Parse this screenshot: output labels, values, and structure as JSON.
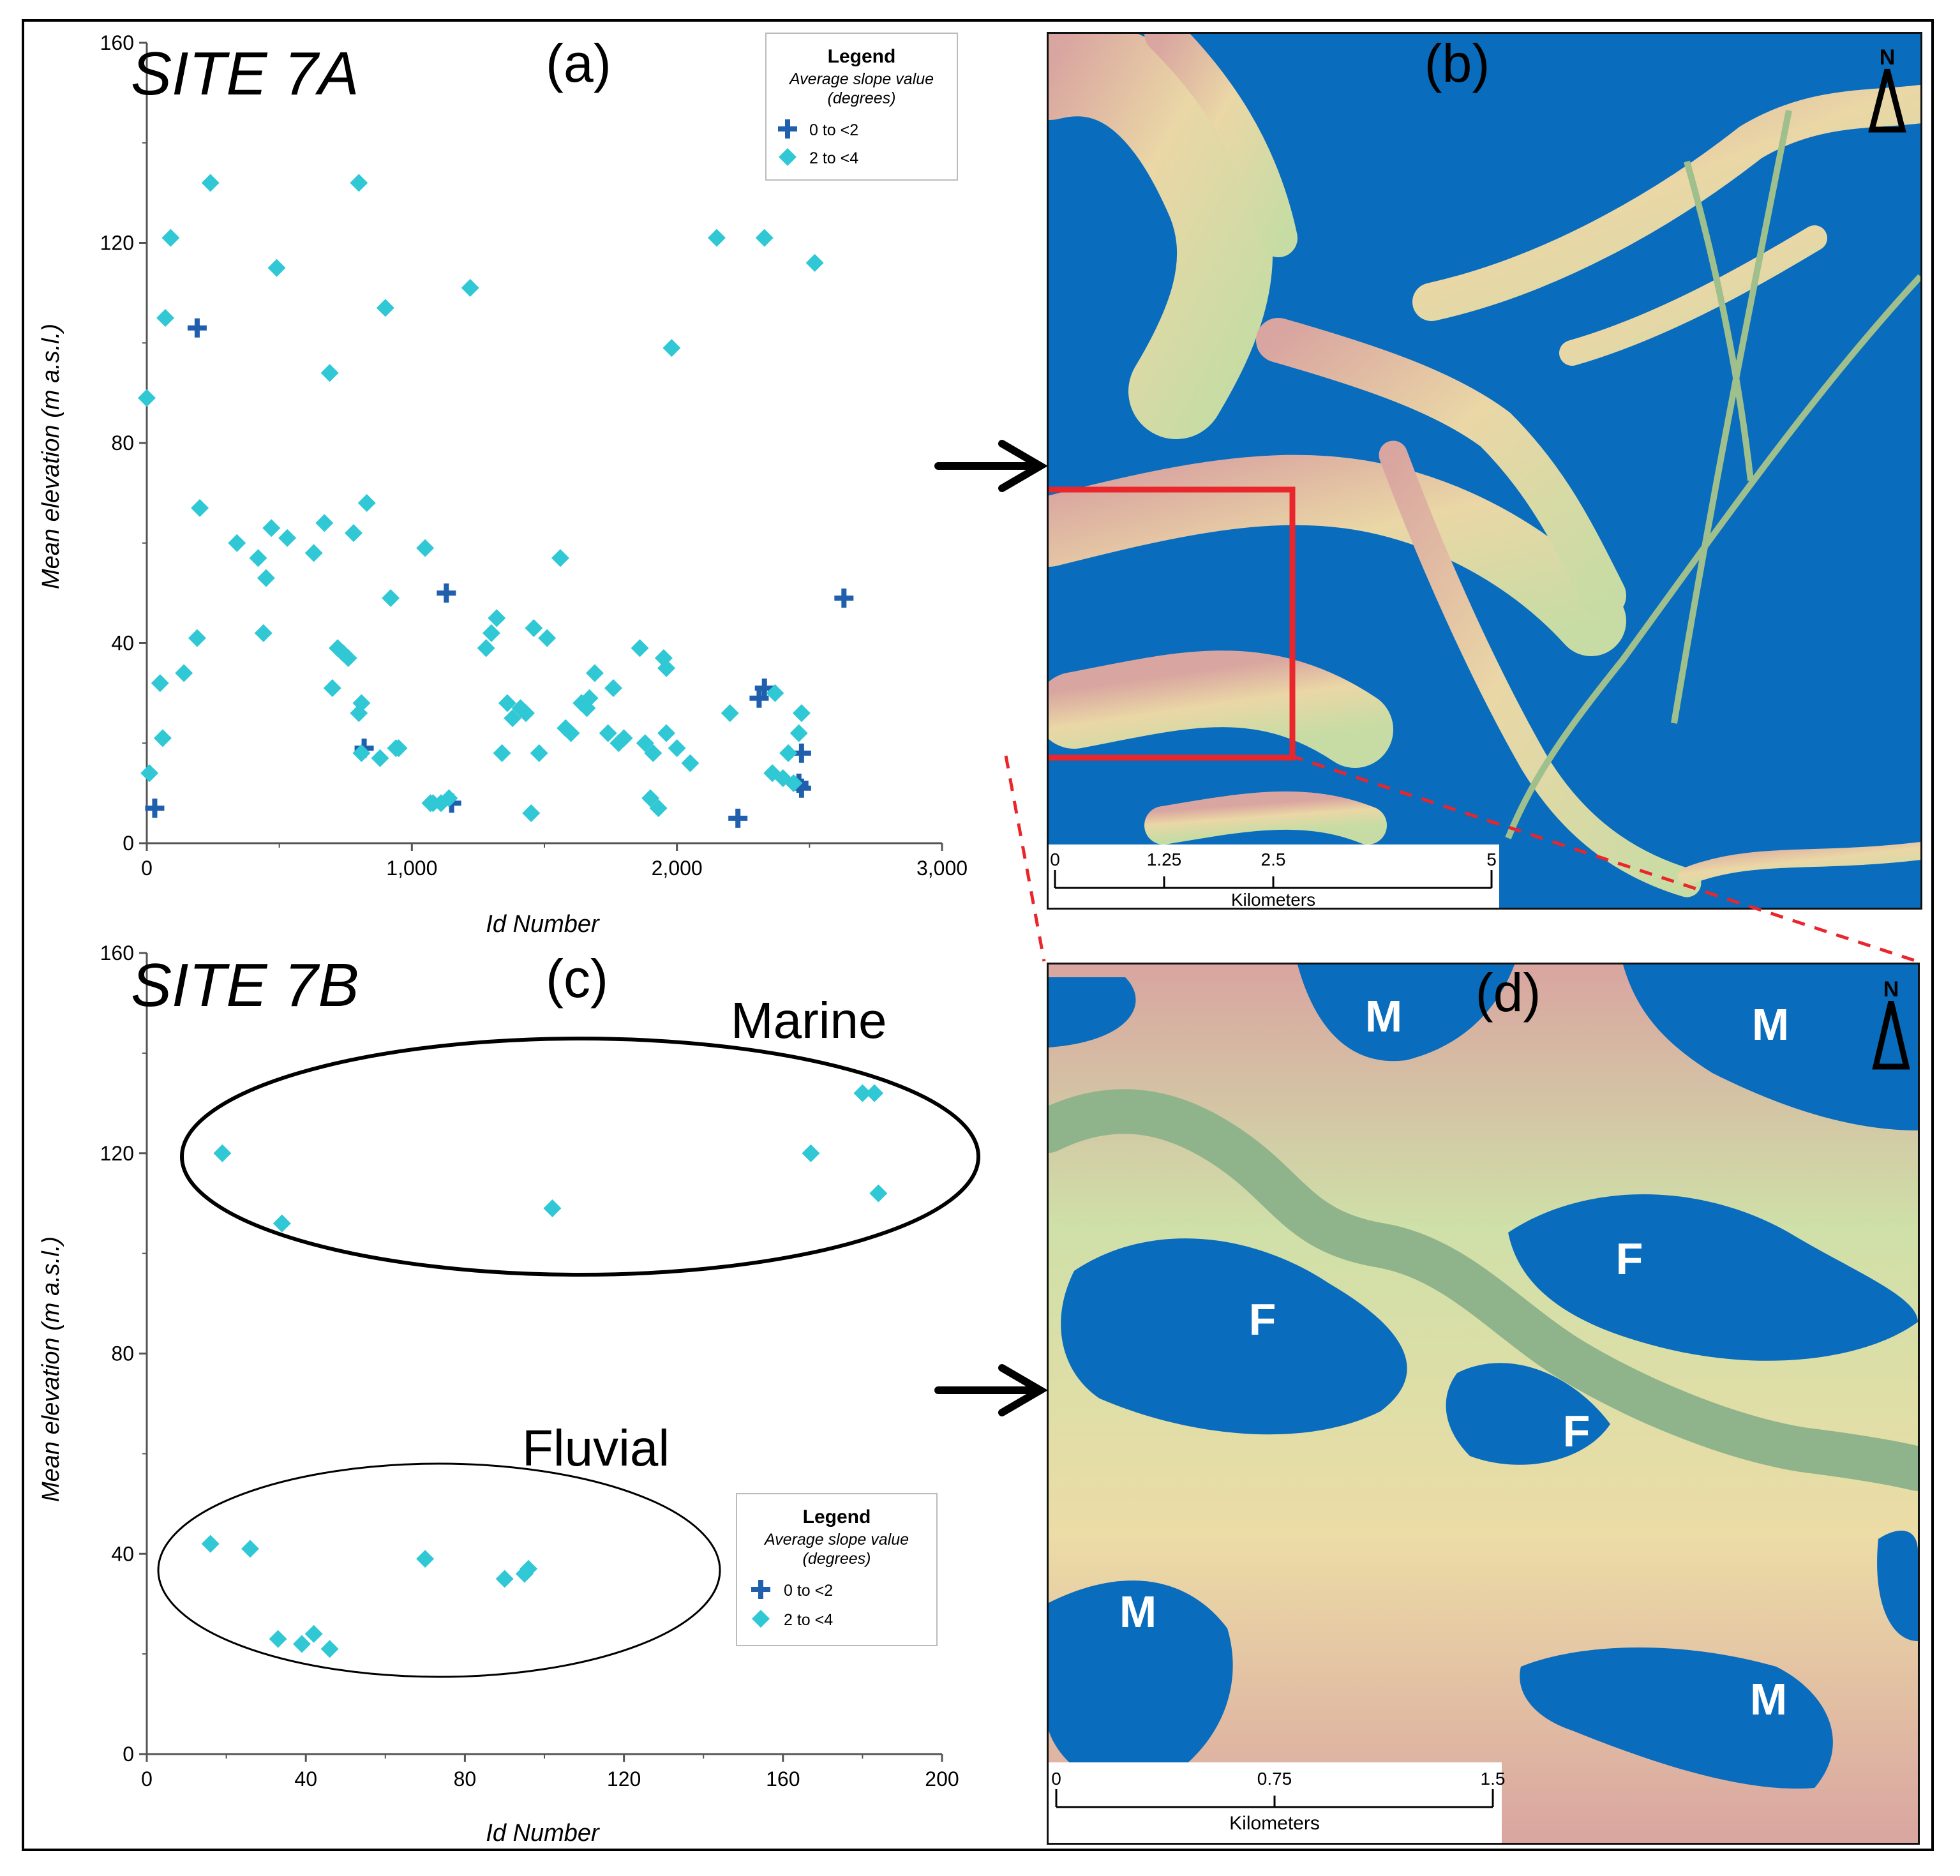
{
  "figure": {
    "panels": {
      "a": {
        "site_title": "SITE 7A",
        "panel_label": "(a)",
        "xlabel": "Id Number",
        "ylabel": "Mean elevation (m a.s.l.)",
        "x_ticks": [
          "0",
          "1,000",
          "2,000",
          "3,000"
        ],
        "y_ticks": [
          "0",
          "40",
          "80",
          "120",
          "160"
        ],
        "legend": {
          "title": "Legend",
          "subtitle_line1": "Average slope value",
          "subtitle_line2": "(degrees)",
          "items": [
            "0 to <2",
            "2 to <4"
          ]
        }
      },
      "b": {
        "panel_label": "(b)",
        "north": "N",
        "scalebar": {
          "ticks": [
            "0",
            "1.25",
            "2.5",
            "5"
          ],
          "unit": "Kilometers"
        }
      },
      "c": {
        "site_title": "SITE 7B",
        "panel_label": "(c)",
        "xlabel": "Id Number",
        "ylabel": "Mean elevation (m a.s.l.)",
        "x_ticks": [
          "0",
          "40",
          "80",
          "120",
          "160",
          "200"
        ],
        "y_ticks": [
          "0",
          "40",
          "80",
          "120",
          "160"
        ],
        "group_labels": {
          "marine": "Marine",
          "fluvial": "Fluvial"
        },
        "legend": {
          "title": "Legend",
          "subtitle_line1": "Average slope value",
          "subtitle_line2": "(degrees)",
          "items": [
            "0 to <2",
            "2 to <4"
          ]
        }
      },
      "d": {
        "panel_label": "(d)",
        "north": "N",
        "region_labels": {
          "marine": "M",
          "fluvial": "F"
        },
        "scalebar": {
          "ticks": [
            "0",
            "0.75",
            "1.5"
          ],
          "unit": "Kilometers"
        }
      }
    },
    "colors": {
      "class_0_2": "#1f5fad",
      "class_2_4": "#2fc8d4",
      "water": "#0a6cbc",
      "terrain_low": "#cfe0a8",
      "terrain_high": "#d9a5a0",
      "highlight": "#e8262b"
    }
  },
  "chart_data": [
    {
      "type": "scatter",
      "xlim": [
        0,
        3000
      ],
      "ylim": [
        0,
        160
      ],
      "series": [
        {
          "name": "0 to <2",
          "marker": "plus",
          "x": [
            30,
            190,
            1130,
            1150,
            820,
            2230,
            2310,
            2330,
            2470,
            2460,
            2470,
            2630
          ],
          "y": [
            7,
            103,
            50,
            8,
            19,
            5,
            29,
            31,
            18,
            12,
            11,
            49
          ]
        },
        {
          "name": "2 to <4",
          "marker": "diamond",
          "x": [
            0,
            10,
            50,
            60,
            70,
            90,
            140,
            190,
            200,
            240,
            340,
            420,
            440,
            450,
            470,
            490,
            530,
            630,
            670,
            690,
            700,
            720,
            740,
            760,
            780,
            800,
            800,
            810,
            810,
            830,
            880,
            900,
            920,
            940,
            950,
            1050,
            1070,
            1080,
            1110,
            1140,
            1220,
            1280,
            1300,
            1320,
            1340,
            1360,
            1380,
            1410,
            1430,
            1450,
            1460,
            1480,
            1510,
            1560,
            1580,
            1600,
            1640,
            1660,
            1670,
            1690,
            1740,
            1760,
            1780,
            1800,
            1860,
            1880,
            1900,
            1910,
            1930,
            1950,
            1960,
            1960,
            1980,
            2000,
            2050,
            2150,
            2200,
            2330,
            2360,
            2370,
            2400,
            2420,
            2440,
            2460,
            2470,
            2520
          ],
          "y": [
            89,
            14,
            32,
            21,
            105,
            121,
            34,
            41,
            67,
            132,
            60,
            57,
            42,
            53,
            63,
            115,
            61,
            58,
            64,
            94,
            31,
            39,
            38,
            37,
            62,
            132,
            26,
            28,
            18,
            68,
            17,
            107,
            49,
            19,
            19,
            59,
            8,
            8,
            8,
            9,
            111,
            39,
            42,
            45,
            18,
            28,
            25,
            27,
            26,
            6,
            43,
            18,
            41,
            57,
            23,
            22,
            28,
            27,
            29,
            34,
            22,
            31,
            20,
            21,
            39,
            20,
            9,
            18,
            7,
            37,
            35,
            22,
            99,
            19,
            16,
            121,
            26,
            121,
            14,
            30,
            13,
            18,
            12,
            22,
            26,
            116
          ]
        }
      ]
    },
    {
      "type": "scatter",
      "xlim": [
        0,
        200
      ],
      "ylim": [
        0,
        160
      ],
      "series": [
        {
          "name": "0 to <2",
          "marker": "plus",
          "x": [],
          "y": []
        },
        {
          "name": "2 to <4",
          "marker": "diamond",
          "x": [
            19,
            34,
            102,
            167,
            180,
            183,
            184,
            16,
            26,
            33,
            39,
            42,
            46,
            70,
            90,
            95,
            96
          ],
          "y": [
            120,
            106,
            109,
            120,
            132,
            132,
            112,
            42,
            41,
            23,
            22,
            24,
            21,
            39,
            35,
            36,
            37
          ]
        }
      ]
    }
  ]
}
